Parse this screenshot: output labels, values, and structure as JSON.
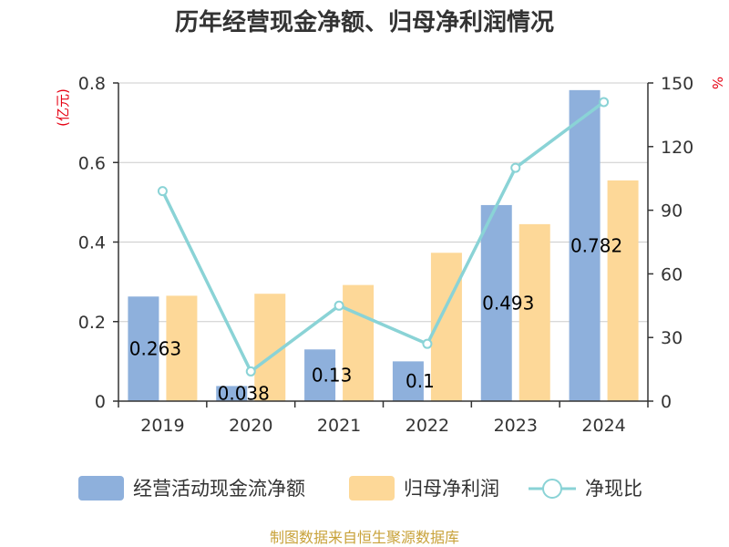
{
  "chart_data": {
    "type": "bar",
    "title": "历年经营现金净额、归母净利润情况",
    "categories": [
      "2019",
      "2020",
      "2021",
      "2022",
      "2023",
      "2024"
    ],
    "y_left": {
      "unit": "(亿元)",
      "ylim": [
        0,
        0.8
      ],
      "ticks": [
        "0",
        "0.2",
        "0.4",
        "0.6",
        "0.8"
      ]
    },
    "y_right": {
      "unit": "%",
      "ylim": [
        0,
        150
      ],
      "ticks": [
        "0",
        "30",
        "60",
        "90",
        "120",
        "150"
      ]
    },
    "series": [
      {
        "name": "经营活动现金流净额",
        "kind": "bar",
        "axis": "left",
        "color": "#8eb0dc",
        "values": [
          0.263,
          0.038,
          0.13,
          0.1,
          0.493,
          0.782
        ],
        "labels": [
          "0.263",
          "0.038",
          "0.13",
          "0.1",
          "0.493",
          "0.782"
        ]
      },
      {
        "name": "归母净利润",
        "kind": "bar",
        "axis": "left",
        "color": "#fdd898",
        "values": [
          0.265,
          0.27,
          0.292,
          0.373,
          0.445,
          0.555
        ]
      },
      {
        "name": "净现比",
        "kind": "line",
        "axis": "right",
        "color": "#8ad3d6",
        "values": [
          99,
          14,
          45,
          27,
          110,
          141
        ]
      }
    ],
    "grid": true,
    "legend": "bottom"
  },
  "footer": {
    "source": "制图数据来自恒生聚源数据库"
  }
}
